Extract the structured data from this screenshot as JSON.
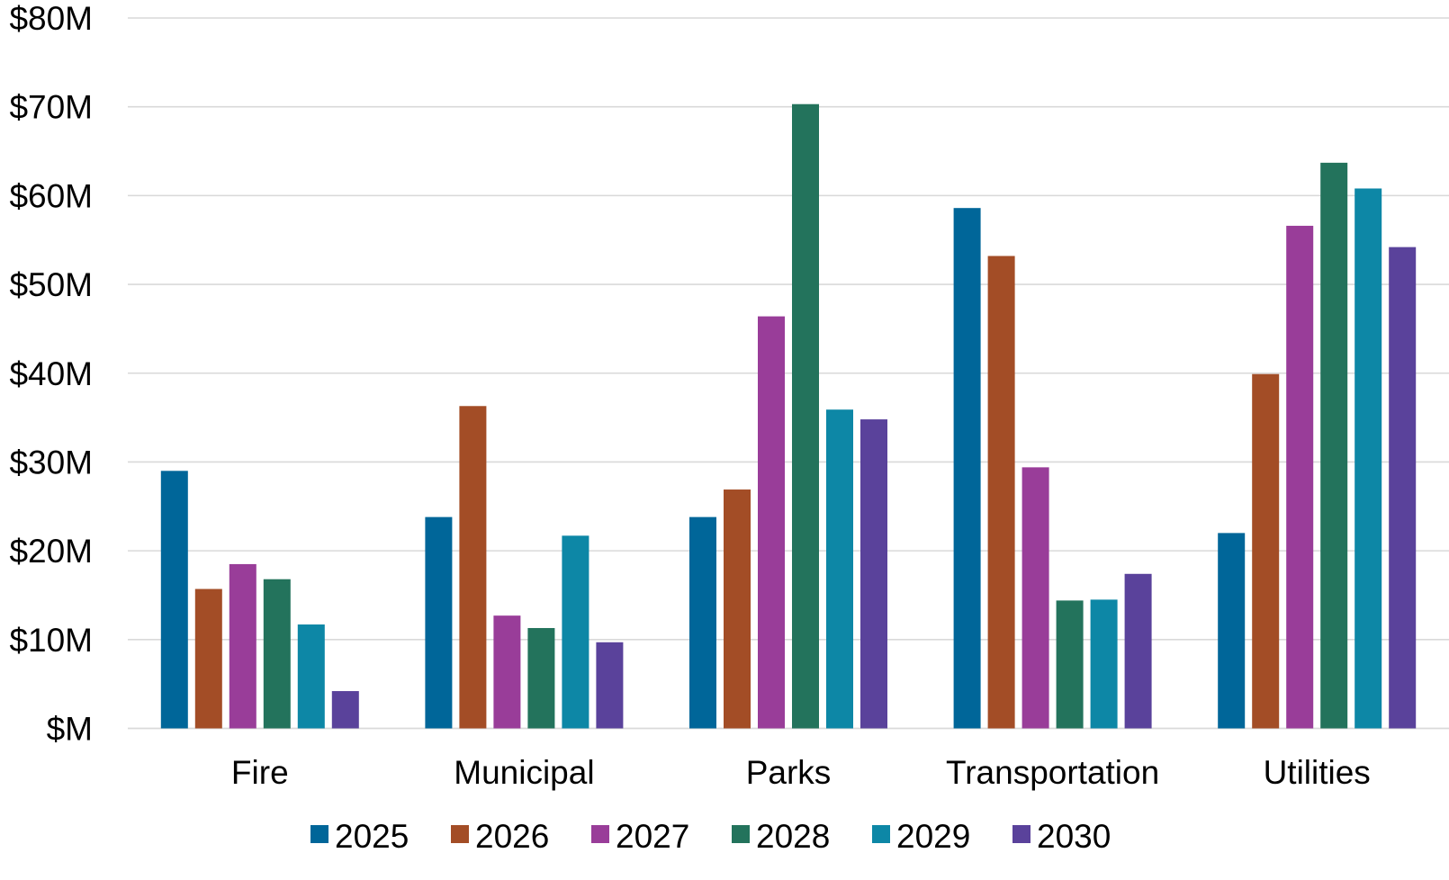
{
  "chart_data": {
    "type": "bar",
    "title": "",
    "xlabel": "",
    "ylabel": "",
    "ylim": [
      0,
      80
    ],
    "yticks": [
      0,
      10,
      20,
      30,
      40,
      50,
      60,
      70,
      80
    ],
    "ytick_labels": [
      "$M",
      "$10M",
      "$20M",
      "$30M",
      "$40M",
      "$50M",
      "$60M",
      "$70M",
      "$80M"
    ],
    "grid": true,
    "legend_position": "bottom",
    "categories": [
      "Fire",
      "Municipal",
      "Parks",
      "Transportation",
      "Utilities"
    ],
    "series": [
      {
        "name": "2025",
        "color": "#006699",
        "values": [
          29,
          23.8,
          23.8,
          58.6,
          22
        ]
      },
      {
        "name": "2026",
        "color": "#a34d26",
        "values": [
          15.7,
          36.3,
          26.9,
          53.2,
          39.9
        ]
      },
      {
        "name": "2027",
        "color": "#993d99",
        "values": [
          18.5,
          12.7,
          46.4,
          29.4,
          56.6
        ]
      },
      {
        "name": "2028",
        "color": "#23735c",
        "values": [
          16.8,
          11.3,
          70.3,
          14.4,
          63.7
        ]
      },
      {
        "name": "2029",
        "color": "#0d87a6",
        "values": [
          11.7,
          21.7,
          35.9,
          14.5,
          60.8
        ]
      },
      {
        "name": "2030",
        "color": "#5a429b",
        "values": [
          4.2,
          9.7,
          34.8,
          17.4,
          54.2
        ]
      }
    ]
  }
}
